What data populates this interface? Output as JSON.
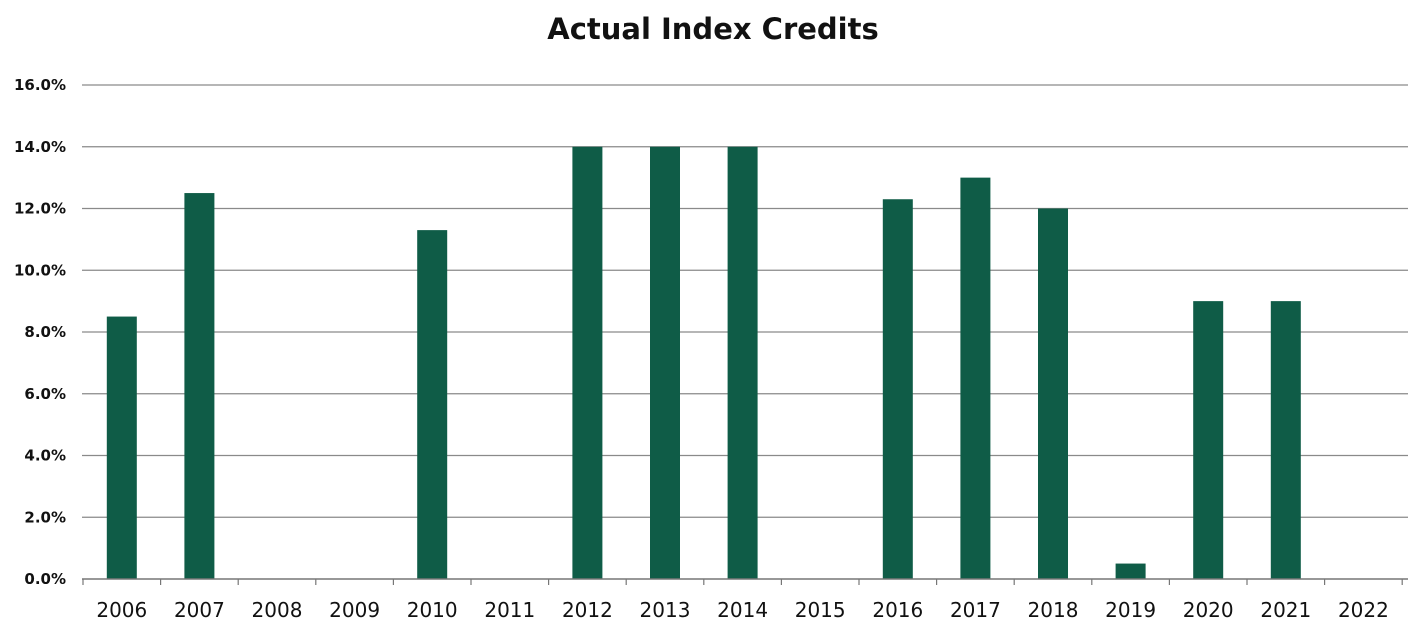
{
  "chart_data": {
    "type": "bar",
    "title": "Actual Index Credits",
    "xlabel": "",
    "ylabel": "",
    "categories": [
      "2006",
      "2007",
      "2008",
      "2009",
      "2010",
      "2011",
      "2012",
      "2013",
      "2014",
      "2015",
      "2016",
      "2017",
      "2018",
      "2019",
      "2020",
      "2021",
      "2022"
    ],
    "values": [
      8.5,
      12.5,
      0,
      0,
      11.3,
      0,
      14.0,
      14.0,
      14.0,
      0,
      12.3,
      13.0,
      12.0,
      0.5,
      9.0,
      9.0,
      0
    ],
    "ylim": [
      0,
      16
    ],
    "y_ticks": [
      "0.0%",
      "2.0%",
      "4.0%",
      "6.0%",
      "8.0%",
      "10.0%",
      "12.0%",
      "14.0%",
      "16.0%"
    ],
    "y_tick_values": [
      0,
      2,
      4,
      6,
      8,
      10,
      12,
      14,
      16
    ],
    "grid": true,
    "legend": "none",
    "colors": {
      "bar": "#0f5c47",
      "grid": "#8a8a8a",
      "axis": "#777777",
      "text": "#111111"
    }
  }
}
